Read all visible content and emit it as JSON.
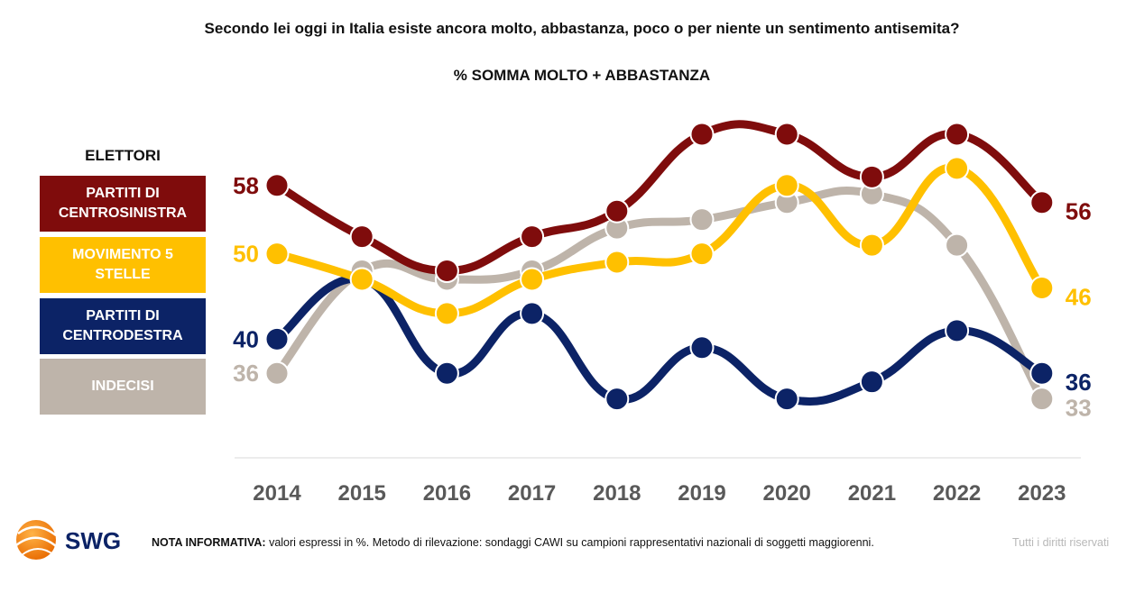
{
  "header": {
    "title": "Secondo lei oggi in Italia esiste ancora molto, abbastanza, poco o per niente un sentimento antisemita?",
    "subtitle": "% SOMMA MOLTO + ABBASTANZA"
  },
  "legend": {
    "title": "ELETTORI",
    "items": [
      {
        "label": "PARTITI DI\nCENTROSINISTRA",
        "color": "#7f0c0c"
      },
      {
        "label": "MOVIMENTO 5\nSTELLE",
        "color": "#ffc000"
      },
      {
        "label": "PARTITI DI\nCENTRODESTRA",
        "color": "#0c2366"
      },
      {
        "label": "INDECISI",
        "color": "#beb4aa"
      }
    ]
  },
  "chart_data": {
    "type": "line",
    "x": [
      "2014",
      "2015",
      "2016",
      "2017",
      "2018",
      "2019",
      "2020",
      "2021",
      "2022",
      "2023"
    ],
    "series": [
      {
        "name": "PARTITI DI CENTROSINISTRA",
        "color": "#7f0c0c",
        "marker_text_color": "#7f0c0c",
        "values": [
          58,
          52,
          48,
          52,
          55,
          64,
          64,
          59,
          64,
          56
        ],
        "labels": {
          "first": "58",
          "last": "56"
        }
      },
      {
        "name": "MOVIMENTO 5 STELLE",
        "color": "#ffc000",
        "marker_text_color": "#ffc000",
        "values": [
          50,
          47,
          43,
          47,
          49,
          50,
          58,
          51,
          60,
          46
        ],
        "labels": {
          "first": "50",
          "last": "46"
        }
      },
      {
        "name": "PARTITI DI CENTRODESTRA",
        "color": "#0c2366",
        "marker_text_color": "#0c2366",
        "values": [
          40,
          47,
          36,
          43,
          33,
          39,
          33,
          35,
          41,
          36
        ],
        "labels": {
          "first": "40",
          "last": "36"
        }
      },
      {
        "name": "INDECISI",
        "color": "#beb4aa",
        "marker_text_color": "#beb4aa",
        "values": [
          36,
          48,
          47,
          48,
          53,
          54,
          56,
          57,
          51,
          33
        ],
        "labels": {
          "first": "36",
          "last": "33"
        }
      }
    ],
    "y_range": [
      28,
      66
    ],
    "grid": false
  },
  "footer": {
    "logo_text": "SWG",
    "note_bold": "NOTA INFORMATIVA:",
    "note_text": " valori espressi in %. Metodo di rilevazione: sondaggi CAWI su campioni rappresentativi nazionali di soggetti maggiorenni.",
    "rights": "Tutti i diritti riservati"
  }
}
